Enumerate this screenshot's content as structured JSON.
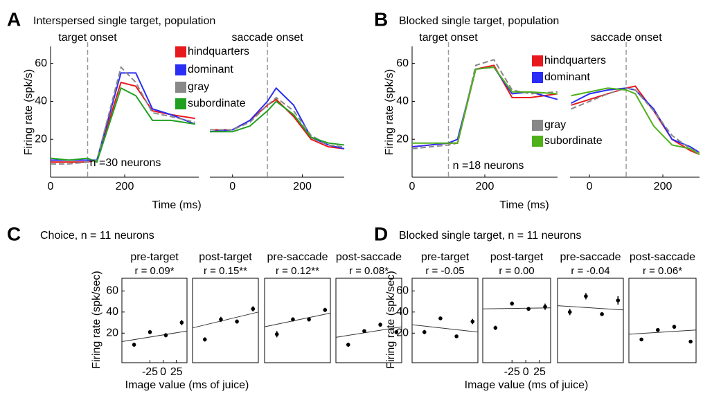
{
  "chart_data": [
    {
      "type": "line",
      "panel": "A",
      "title": "Interspersed single target, population",
      "ylabel": "Firing rate (spk/s)",
      "xlabel": "Time (ms)",
      "annotation": "n =30 neurons",
      "ylim": [
        0,
        69
      ],
      "yticks": [
        20,
        40,
        60
      ],
      "subplots": [
        {
          "label": "target onset",
          "event": 100,
          "xlim": [
            0,
            400
          ],
          "xticks": [
            0,
            200
          ],
          "x": [
            0,
            50,
            100,
            125,
            190,
            230,
            275,
            325,
            390
          ]
        },
        {
          "label": "saccade onset",
          "event": 100,
          "xlim": [
            -65,
            320
          ],
          "xticks": [
            0,
            200
          ],
          "x": [
            -65,
            0,
            50,
            100,
            125,
            175,
            225,
            275,
            320
          ]
        }
      ],
      "series": [
        {
          "name": "hindquarters",
          "color": "#e8191c",
          "line_style": "solid",
          "values": [
            [
              8,
              8,
              8,
              9,
              50,
              48,
              35,
              33,
              31
            ],
            [
              25,
              25,
              30,
              38,
              41,
              32,
              20,
              16,
              15
            ]
          ]
        },
        {
          "name": "dominant",
          "color": "#2a2ef5",
          "line_style": "solid",
          "values": [
            [
              9,
              9,
              9,
              9,
              55,
              55,
              36,
              33,
              28
            ],
            [
              24,
              25,
              30,
              40,
              47,
              38,
              21,
              17,
              15
            ]
          ]
        },
        {
          "name": "gray",
          "color": "#888888",
          "line_style": "dashed",
          "values": [
            [
              7,
              7,
              8,
              9,
              58,
              50,
              34,
              32,
              29
            ],
            [
              25,
              25,
              29,
              38,
              42,
              35,
              22,
              17,
              16
            ]
          ]
        },
        {
          "name": "subordinate",
          "color": "#1fa01f",
          "line_style": "solid",
          "values": [
            [
              10,
              9,
              10,
              8,
              47,
              43,
              30,
              30,
              28
            ],
            [
              24,
              24,
              27,
              35,
              40,
              33,
              21,
              18,
              17
            ]
          ]
        }
      ]
    },
    {
      "type": "line",
      "panel": "B",
      "title": "Blocked single target, population",
      "ylabel": "Firing rate (spk/s)",
      "xlabel": "Time (ms)",
      "annotation": "n =18 neurons",
      "ylim": [
        0,
        69
      ],
      "yticks": [
        20,
        40,
        60
      ],
      "subplots": [
        {
          "label": "target onset",
          "event": 100,
          "xlim": [
            0,
            400
          ],
          "xticks": [
            0,
            200
          ],
          "x": [
            0,
            50,
            100,
            125,
            175,
            225,
            275,
            325,
            400
          ]
        },
        {
          "label": "saccade onset",
          "event": 100,
          "xlim": [
            -53,
            300
          ],
          "xticks": [
            0,
            200
          ],
          "x": [
            -50,
            0,
            50,
            100,
            125,
            175,
            225,
            275,
            300
          ]
        }
      ],
      "series": [
        {
          "name": "hindquarters",
          "color": "#e8191c",
          "line_style": "solid",
          "values": [
            [
              16,
              17,
              18,
              18,
              57,
              59,
              42,
              42,
              44
            ],
            [
              38,
              41,
              44,
              47,
              48,
              35,
              20,
              14,
              12
            ]
          ]
        },
        {
          "name": "dominant",
          "color": "#2a2ef5",
          "line_style": "solid",
          "values": [
            [
              16,
              17,
              18,
              20,
              57,
              58,
              44,
              45,
              41
            ],
            [
              39,
              44,
              46,
              47,
              46,
              36,
              20,
              16,
              13
            ]
          ]
        },
        {
          "name": "gray",
          "color": "#888888",
          "line_style": "dashed",
          "values": [
            [
              15,
              16,
              17,
              18,
              59,
              62,
              46,
              44,
              45
            ],
            [
              36,
              40,
              44,
              47,
              46,
              35,
              22,
              15,
              13
            ]
          ]
        },
        {
          "name": "subordinate",
          "color": "#4fb01a",
          "line_style": "solid",
          "values": [
            [
              18,
              18,
              18,
              18,
              57,
              58,
              45,
              45,
              44
            ],
            [
              43,
              45,
              47,
              46,
              44,
              27,
              17,
              15,
              12
            ]
          ]
        }
      ]
    },
    {
      "type": "errorbar",
      "panel": "C",
      "title": "Choice, n = 11 neurons",
      "ylabel": "Firing rate (spk/sec)",
      "xlabel": "Image value (ms of juice)",
      "ylim": [
        -8,
        72
      ],
      "yticks": [
        20,
        40,
        60
      ],
      "subplots": [
        {
          "title": "pre-target",
          "stat": "r = 0.09*",
          "xlim": [
            -78,
            45
          ],
          "xticks": [
            -25,
            0,
            25
          ],
          "x": [
            -55,
            -25,
            5,
            35
          ],
          "values": [
            9,
            21,
            18,
            30
          ],
          "errors": [
            2,
            2,
            2,
            2.5
          ],
          "fit": {
            "x": [
              -78,
              45
            ],
            "y": [
              12,
              22
            ]
          }
        },
        {
          "title": "post-target",
          "stat": "r = 0.15**",
          "xlim": [
            -78,
            45
          ],
          "x": [
            -55,
            -25,
            5,
            35
          ],
          "values": [
            14,
            33,
            31,
            43
          ],
          "errors": [
            2,
            2.5,
            2,
            2.5
          ],
          "fit": {
            "x": [
              -78,
              45
            ],
            "y": [
              25,
              40
            ]
          }
        },
        {
          "title": "pre-saccade",
          "stat": "r = 0.12**",
          "xlim": [
            -78,
            45
          ],
          "x": [
            -55,
            -25,
            5,
            35
          ],
          "values": [
            19,
            33,
            33,
            42
          ],
          "errors": [
            3,
            2,
            2,
            2
          ],
          "fit": {
            "x": [
              -78,
              45
            ],
            "y": [
              26,
              39
            ]
          }
        },
        {
          "title": "post-saccade",
          "stat": "r = 0.08*",
          "xlim": [
            -78,
            45
          ],
          "x": [
            -55,
            -25,
            5,
            35
          ],
          "values": [
            9,
            22,
            28,
            21
          ],
          "errors": [
            2,
            1.5,
            2,
            2
          ],
          "fit": {
            "x": [
              -78,
              45
            ],
            "y": [
              16,
              26
            ]
          }
        }
      ]
    },
    {
      "type": "errorbar",
      "panel": "D",
      "title": "Blocked single target, n = 11 neurons",
      "ylabel": "Firing rate (spk/sec)",
      "xlabel": "Image value (ms of juice)",
      "ylim": [
        -8,
        72
      ],
      "yticks": [
        20,
        40,
        60
      ],
      "subplots": [
        {
          "title": "pre-target",
          "stat": "r = -0.05",
          "xlim": [
            -78,
            45
          ],
          "x": [
            -55,
            -25,
            5,
            35
          ],
          "values": [
            21,
            34,
            17,
            31
          ],
          "errors": [
            2,
            1.5,
            1.5,
            2.5
          ],
          "fit": {
            "x": [
              -78,
              45
            ],
            "y": [
              28,
              21
            ]
          }
        },
        {
          "title": "post-target",
          "stat": "r = 0.00",
          "xlim": [
            -78,
            45
          ],
          "xticks": [
            -25,
            0,
            25
          ],
          "x": [
            -55,
            -25,
            5,
            35
          ],
          "values": [
            25,
            48,
            43,
            45
          ],
          "errors": [
            2,
            2,
            1.5,
            3
          ],
          "fit": {
            "x": [
              -78,
              45
            ],
            "y": [
              43,
              44
            ]
          }
        },
        {
          "title": "pre-saccade",
          "stat": "r = -0.04",
          "xlim": [
            -78,
            45
          ],
          "x": [
            -55,
            -25,
            5,
            35
          ],
          "values": [
            40,
            55,
            38,
            51
          ],
          "errors": [
            3,
            3,
            1.5,
            4
          ],
          "fit": {
            "x": [
              -78,
              45
            ],
            "y": [
              46,
              42
            ]
          }
        },
        {
          "title": "post-saccade",
          "stat": "r = 0.06*",
          "xlim": [
            -78,
            45
          ],
          "x": [
            -55,
            -25,
            5,
            35
          ],
          "values": [
            14,
            23,
            26,
            12
          ],
          "errors": [
            1.5,
            1.5,
            2,
            1.5
          ],
          "fit": {
            "x": [
              -78,
              45
            ],
            "y": [
              19,
              23
            ]
          }
        }
      ]
    }
  ]
}
